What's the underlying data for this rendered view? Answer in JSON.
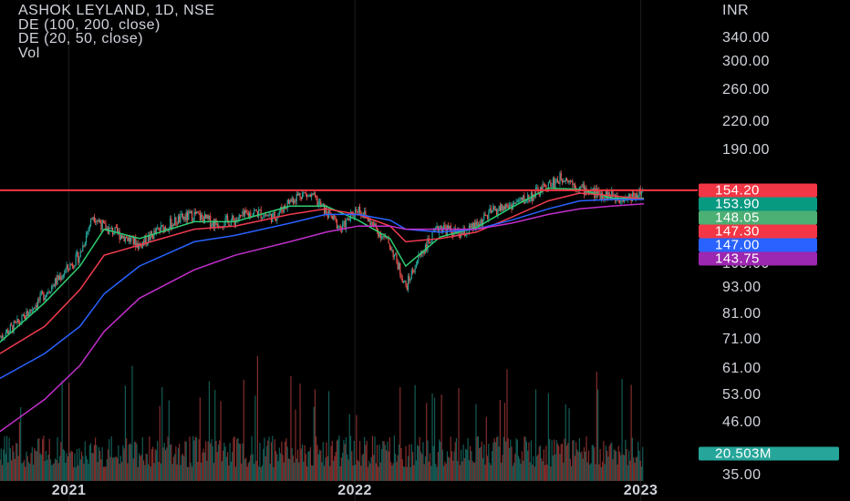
{
  "legend": {
    "symbol": "ASHOK LEYLAND, 1D, NSE",
    "indicator1": "DE (100, 200, close)",
    "indicator2": "DE (20, 50, close)",
    "volume": "Vol"
  },
  "currency": "INR",
  "colors": {
    "background": "#000000",
    "up": "#26a69a",
    "down": "#ef5350",
    "ema20": "#2ecc71",
    "ema50": "#ef3b50",
    "ema100": "#2962ff",
    "ema200": "#c02fc9",
    "resistance": "#f23645"
  },
  "chart_data": {
    "type": "line",
    "title": "ASHOK LEYLAND, 1D, NSE",
    "yscale": "log",
    "ylim": [
      35,
      400
    ],
    "y_ticks": [
      340.0,
      300.0,
      260.0,
      220.0,
      190.0,
      105.0,
      93.0,
      81.0,
      71.0,
      61.0,
      53.0,
      46.0,
      35.0
    ],
    "x_ticks": [
      "2021",
      "2022",
      "2023"
    ],
    "x_tick_dates": [
      "2021-01-01",
      "2022-01-01",
      "2023-01-01"
    ],
    "x_range": [
      "2020-10-05",
      "2023-01-05"
    ],
    "resistance_level": 154.2,
    "series": [
      {
        "name": "Close",
        "x": [
          "2020-10-05",
          "2020-11-01",
          "2020-12-01",
          "2020-12-20",
          "2021-01-15",
          "2021-02-01",
          "2021-02-15",
          "2021-03-10",
          "2021-04-01",
          "2021-04-25",
          "2021-05-20",
          "2021-06-10",
          "2021-07-05",
          "2021-08-01",
          "2021-08-25",
          "2021-09-20",
          "2021-10-10",
          "2021-10-25",
          "2021-11-10",
          "2021-11-25",
          "2021-12-15",
          "2022-01-05",
          "2022-01-25",
          "2022-02-15",
          "2022-03-07",
          "2022-03-25",
          "2022-04-20",
          "2022-05-15",
          "2022-06-05",
          "2022-06-25",
          "2022-07-20",
          "2022-08-10",
          "2022-09-05",
          "2022-09-25",
          "2022-10-15",
          "2022-11-05",
          "2022-11-25",
          "2022-12-15",
          "2023-01-05"
        ],
        "values": [
          72,
          78,
          90,
          98,
          110,
          136,
          127,
          122,
          116,
          125,
          132,
          136,
          130,
          132,
          138,
          134,
          146,
          152,
          148,
          138,
          126,
          141,
          128,
          116,
          93,
          110,
          128,
          122,
          128,
          138,
          143,
          148,
          158,
          166,
          156,
          152,
          150,
          148,
          154
        ]
      },
      {
        "name": "",
        "x": [
          "2020-10-05",
          "2020-12-01",
          "2021-01-15",
          "2021-02-15",
          "2021-04-01",
          "2021-06-10",
          "2021-08-01",
          "2021-10-10",
          "2021-11-25",
          "2022-01-05",
          "2022-02-15",
          "2022-03-07",
          "2022-04-20",
          "2022-06-05",
          "2022-07-20",
          "2022-09-05",
          "2022-10-15",
          "2022-11-25",
          "2023-01-05"
        ],
        "values": [
          70,
          86,
          104,
          126,
          120,
          131,
          131,
          142,
          142,
          132,
          120,
          104,
          121,
          127,
          141,
          156,
          155,
          148,
          148
        ]
      },
      {
        "name": "",
        "x": [
          "2020-10-05",
          "2020-12-01",
          "2021-01-15",
          "2021-02-15",
          "2021-04-01",
          "2021-06-10",
          "2021-08-01",
          "2021-10-10",
          "2021-11-25",
          "2022-01-05",
          "2022-02-15",
          "2022-03-07",
          "2022-04-20",
          "2022-06-05",
          "2022-07-20",
          "2022-09-05",
          "2022-10-15",
          "2022-11-25",
          "2023-01-05"
        ],
        "values": [
          66,
          76,
          92,
          110,
          116,
          126,
          128,
          136,
          140,
          136,
          128,
          118,
          120,
          124,
          134,
          146,
          152,
          150,
          147.3
        ]
      },
      {
        "name": "",
        "x": [
          "2020-10-05",
          "2020-12-01",
          "2021-01-15",
          "2021-02-15",
          "2021-04-01",
          "2021-06-10",
          "2021-08-01",
          "2021-10-10",
          "2021-11-25",
          "2022-01-05",
          "2022-02-15",
          "2022-03-07",
          "2022-04-20",
          "2022-06-05",
          "2022-07-20",
          "2022-09-05",
          "2022-10-15",
          "2022-11-25",
          "2023-01-05"
        ],
        "values": [
          58,
          66,
          76,
          90,
          104,
          118,
          122,
          130,
          136,
          136,
          132,
          126,
          124,
          126,
          132,
          140,
          146,
          147,
          147.0
        ]
      },
      {
        "name": "",
        "x": [
          "2020-10-05",
          "2020-12-01",
          "2021-01-15",
          "2021-02-15",
          "2021-04-01",
          "2021-06-10",
          "2021-08-01",
          "2021-10-10",
          "2021-11-25",
          "2022-01-05",
          "2022-02-15",
          "2022-03-07",
          "2022-04-20",
          "2022-06-05",
          "2022-07-20",
          "2022-09-05",
          "2022-10-15",
          "2022-11-25",
          "2023-01-05"
        ],
        "values": [
          44,
          52,
          62,
          74,
          88,
          102,
          110,
          118,
          124,
          128,
          128,
          126,
          126,
          126,
          130,
          136,
          140,
          142,
          143.75
        ]
      }
    ],
    "volume": {
      "name": "Vol",
      "last_value": "20.503M"
    },
    "price_labels": [
      {
        "value": 154.2,
        "text": "154.20",
        "color": "#f23645"
      },
      {
        "value": 153.9,
        "text": "153.90",
        "color": "#089981"
      },
      {
        "value": 148.05,
        "text": "148.05",
        "color": "#4caf73"
      },
      {
        "value": 147.3,
        "text": "147.30",
        "color": "#f23645"
      },
      {
        "value": 147.0,
        "text": "147.00",
        "color": "#2962ff"
      },
      {
        "value": 143.75,
        "text": "143.75",
        "color": "#9c27b0"
      }
    ],
    "volume_label": {
      "text": "20.503M",
      "color": "#26a69a"
    }
  }
}
